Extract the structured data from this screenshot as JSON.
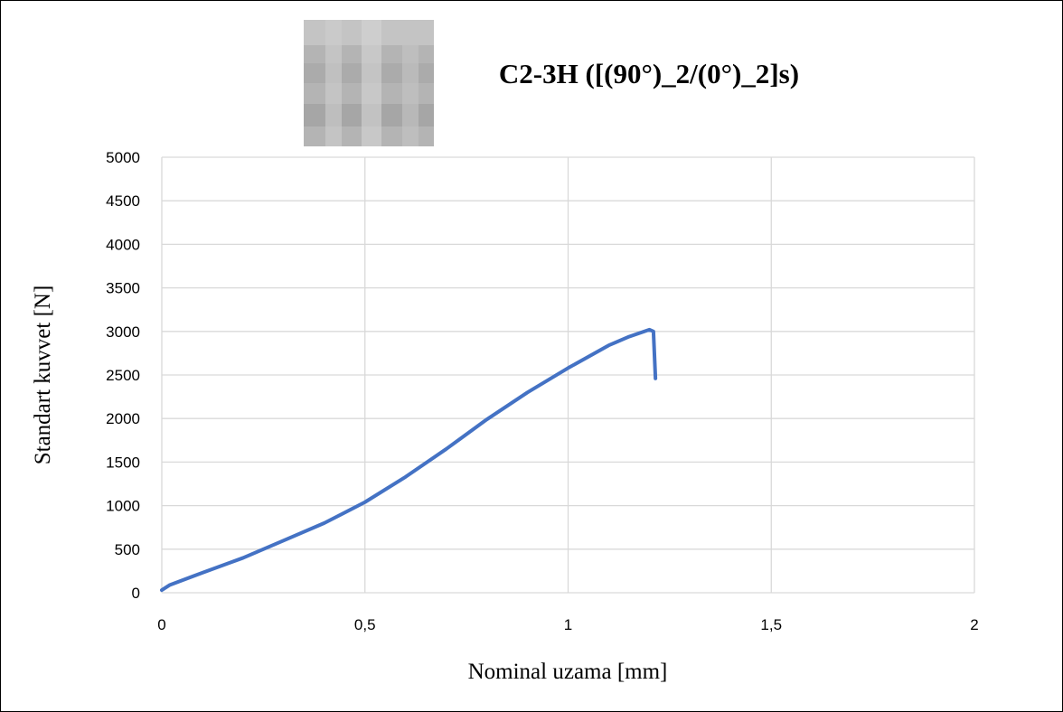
{
  "chart_data": {
    "type": "line",
    "title": "C2-3H  ([(90°)_2/(0°)_2]s)",
    "x_label": "Nominal uzama [mm]",
    "y_label": "Standart kuvvet [N]",
    "xlim": [
      0,
      2
    ],
    "xticks": [
      0,
      {
        "value": 0.5,
        "label": "0,5"
      },
      1,
      {
        "value": 1.5,
        "label": "1,5"
      },
      2
    ],
    "ylim": [
      0,
      5000
    ],
    "yticks": [
      0,
      500,
      1000,
      1500,
      2000,
      2500,
      3000,
      3500,
      4000,
      4500,
      5000
    ],
    "grid": true,
    "series": [
      {
        "color": "#4472c4",
        "x": [
          0,
          0.02,
          0.1,
          0.2,
          0.3,
          0.4,
          0.5,
          0.6,
          0.7,
          0.8,
          0.9,
          1.0,
          1.1,
          1.15,
          1.2,
          1.21,
          1.215
        ],
        "values": [
          30,
          90,
          230,
          400,
          600,
          800,
          1040,
          1330,
          1650,
          1990,
          2300,
          2580,
          2840,
          2940,
          3020,
          3000,
          2460
        ]
      }
    ]
  }
}
